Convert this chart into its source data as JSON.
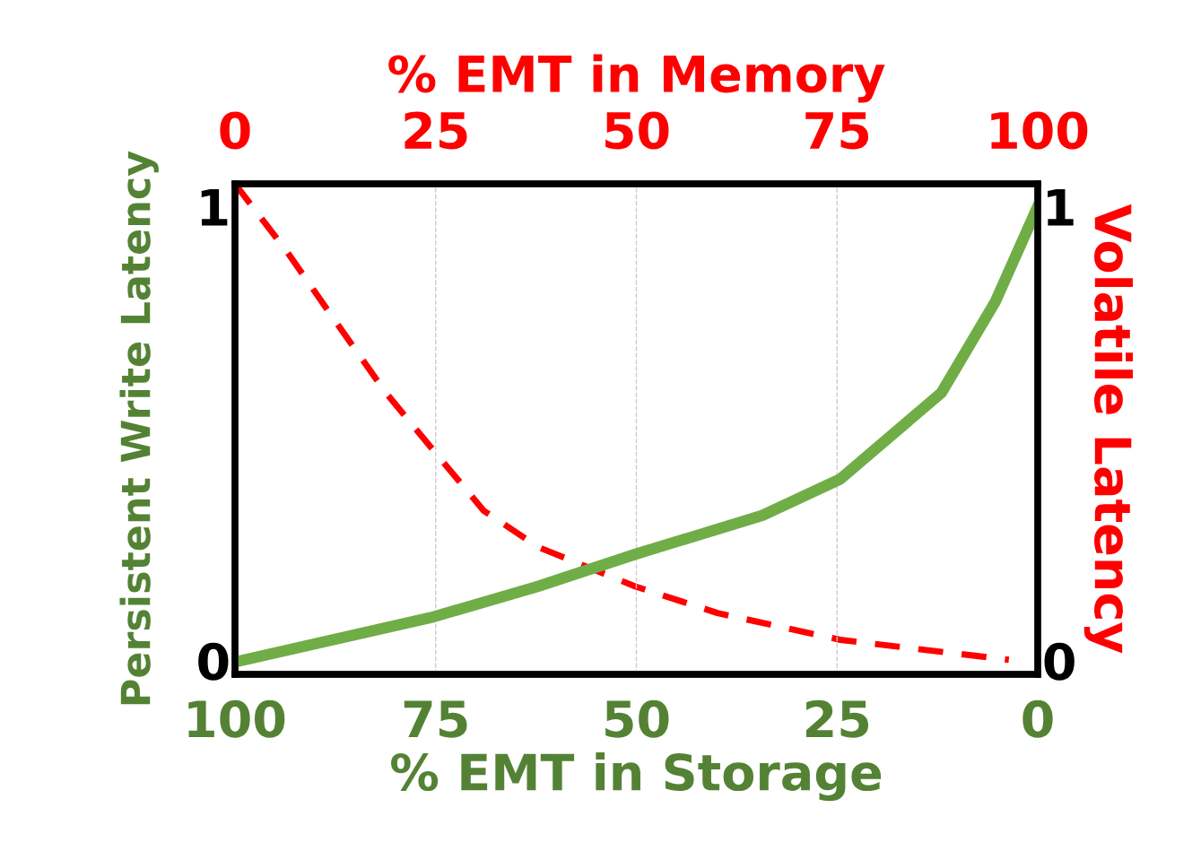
{
  "chart_data": {
    "type": "line",
    "xlabel": "% EMT in Storage",
    "ylabel": "Persistent Write Latency",
    "y2label": "Volatile Latency",
    "x2label": "% EMT in Memory",
    "xlim": [
      100,
      0
    ],
    "xticks": [
      100,
      75,
      50,
      25,
      0
    ],
    "x2lim": [
      0,
      100
    ],
    "x2ticks": [
      0,
      25,
      50,
      75,
      100
    ],
    "ylim": [
      -0.03,
      1.05
    ],
    "yticks": [
      0,
      1
    ],
    "y2lim": [
      -0.03,
      1.05
    ],
    "y2ticks": [
      0,
      1
    ],
    "grid": "x",
    "legend": false,
    "marker": "none",
    "series": [
      {
        "color": "#70ad47",
        "line_style": "solid",
        "x": [
          99.3,
          75.6,
          62.2,
          50.2,
          34.3,
          24.6,
          12,
          5.3,
          0
        ],
        "values": [
          0,
          0.095,
          0.164,
          0.234,
          0.32,
          0.4,
          0.59,
          0.79,
          1.0
        ]
      },
      {
        "color": "#ff0000",
        "line_style": "dashed",
        "axis": "y2",
        "x": [
          100,
          93.5,
          86.8,
          81.2,
          75.6,
          69,
          62.2,
          50.2,
          39.9,
          24.6,
          3.6
        ],
        "values": [
          1.05,
          0.9,
          0.73,
          0.59,
          0.47,
          0.33,
          0.25,
          0.164,
          0.105,
          0.046,
          0.002
        ]
      }
    ]
  }
}
